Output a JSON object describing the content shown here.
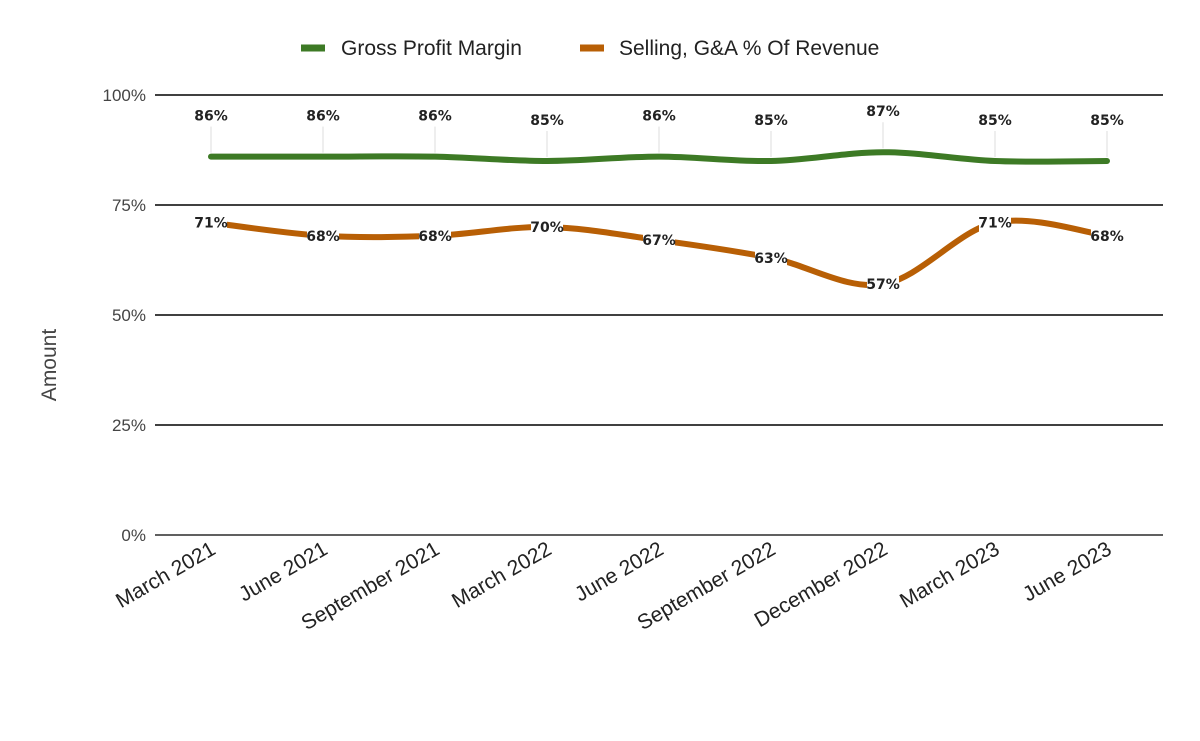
{
  "chart_data": {
    "type": "line",
    "categories": [
      "March 2021",
      "June 2021",
      "September 2021",
      "March 2022",
      "June 2022",
      "September 2022",
      "December 2022",
      "March 2023",
      "June 2023"
    ],
    "series": [
      {
        "name": "Gross Profit Margin",
        "color": "#3d7a25",
        "values": [
          86,
          86,
          86,
          85,
          86,
          85,
          87,
          85,
          85
        ],
        "labels": [
          "86%",
          "86%",
          "86%",
          "85%",
          "86%",
          "85%",
          "87%",
          "85%",
          "85%"
        ]
      },
      {
        "name": "Selling, G&A % Of Revenue",
        "color": "#b85f05",
        "values": [
          71,
          68,
          68,
          70,
          67,
          63,
          57,
          71,
          68
        ],
        "labels": [
          "71%",
          "68%",
          "68%",
          "70%",
          "67%",
          "63%",
          "57%",
          "71%",
          "68%"
        ]
      }
    ],
    "ylabel": "Amount",
    "xlabel": "",
    "ylim": [
      0,
      100
    ],
    "yticks": [
      0,
      25,
      50,
      75,
      100
    ],
    "ytick_labels": [
      "0%",
      "25%",
      "50%",
      "75%",
      "100%"
    ],
    "legend_position": "top",
    "grid": true,
    "smooth": true
  }
}
